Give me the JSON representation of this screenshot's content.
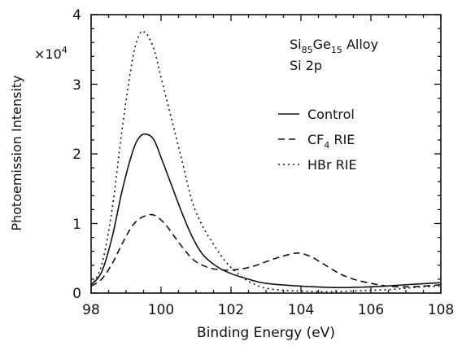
{
  "chart_data": {
    "type": "line",
    "xlabel": "Binding Energy (eV)",
    "ylabel": "Photoemission Intensity",
    "y_multiplier": {
      "base": "×10",
      "exponent": "4"
    },
    "xlim": [
      98,
      108
    ],
    "ylim": [
      0,
      4
    ],
    "xticks": [
      "98",
      "100",
      "102",
      "104",
      "106",
      "108"
    ],
    "yticks": [
      "0",
      "1",
      "2",
      "3",
      "4"
    ],
    "grid": false,
    "annotation": {
      "line1": {
        "a": "Si",
        "a_sub": "85",
        "b": "Ge",
        "b_sub": "15",
        "rest": " Alloy"
      },
      "line2": "Si 2p"
    },
    "legend_position": "right",
    "series": [
      {
        "name": "Control",
        "dash": "solid",
        "x": [
          98.0,
          98.3,
          98.6,
          98.9,
          99.2,
          99.4,
          99.6,
          99.8,
          100.0,
          100.3,
          100.6,
          100.9,
          101.2,
          101.6,
          102.0,
          102.5,
          103.0,
          104.0,
          105.0,
          106.0,
          107.0,
          108.0
        ],
        "y": [
          0.12,
          0.3,
          0.8,
          1.5,
          2.05,
          2.25,
          2.28,
          2.2,
          1.95,
          1.55,
          1.15,
          0.8,
          0.55,
          0.38,
          0.28,
          0.2,
          0.14,
          0.1,
          0.08,
          0.09,
          0.12,
          0.15
        ]
      },
      {
        "name": "CF",
        "name_sub": "4",
        "name_rest": " RIE",
        "dash": "dashed",
        "x": [
          98.0,
          98.3,
          98.6,
          98.9,
          99.2,
          99.5,
          99.8,
          100.1,
          100.4,
          100.7,
          101.0,
          101.4,
          101.8,
          102.2,
          102.6,
          103.0,
          103.4,
          103.8,
          104.0,
          104.3,
          104.7,
          105.1,
          105.5,
          106.0,
          106.5,
          107.0,
          107.5,
          108.0
        ],
        "y": [
          0.1,
          0.2,
          0.42,
          0.72,
          0.98,
          1.1,
          1.12,
          1.0,
          0.8,
          0.6,
          0.45,
          0.36,
          0.33,
          0.34,
          0.38,
          0.45,
          0.52,
          0.57,
          0.57,
          0.52,
          0.4,
          0.28,
          0.2,
          0.14,
          0.1,
          0.09,
          0.1,
          0.12
        ]
      },
      {
        "name": "HBr RIE",
        "dash": "dotted",
        "x": [
          98.0,
          98.3,
          98.6,
          98.9,
          99.2,
          99.4,
          99.5,
          99.6,
          99.8,
          100.0,
          100.3,
          100.6,
          100.9,
          101.2,
          101.5,
          101.8,
          102.1,
          102.4,
          102.7,
          103.0,
          103.5,
          104.0,
          104.5,
          105.0,
          105.5,
          106.0,
          106.5,
          107.0,
          107.5,
          108.0
        ],
        "y": [
          0.1,
          0.4,
          1.2,
          2.4,
          3.4,
          3.73,
          3.75,
          3.72,
          3.5,
          3.1,
          2.5,
          1.9,
          1.3,
          0.95,
          0.7,
          0.48,
          0.32,
          0.2,
          0.12,
          0.07,
          0.04,
          0.03,
          0.02,
          0.02,
          0.03,
          0.04,
          0.05,
          0.07,
          0.09,
          0.1
        ]
      }
    ]
  }
}
